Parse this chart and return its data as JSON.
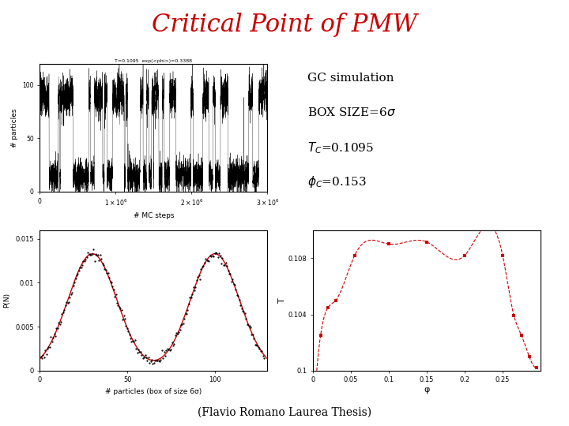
{
  "title": "Critical Point of PMW",
  "title_color": "#cc0000",
  "title_fontsize": 22,
  "bg_color": "#ffffff",
  "top_subtitle": "T=0.1095  exp(<phi>)=0.3388",
  "timeseries_xlabel": "# MC steps",
  "timeseries_ylabel": "# particles",
  "timeseries_xlim": [
    0,
    3000000
  ],
  "timeseries_ylim": [
    0,
    120
  ],
  "timeseries_yticks": [
    0,
    50,
    100
  ],
  "pn_xlabel": "# particles (box of size 6σ)",
  "pn_ylabel": "P(N)",
  "pn_xlim": [
    0,
    130
  ],
  "pn_ylim": [
    0,
    0.016
  ],
  "pn_yticks": [
    0,
    0.005,
    0.01,
    0.015
  ],
  "pn_xticks": [
    0,
    50,
    100
  ],
  "pn_peak1": 30,
  "pn_peak2": 100,
  "pn_sigma": 14,
  "pn_amp": 0.0133,
  "phase_phi": [
    0.005,
    0.01,
    0.02,
    0.03,
    0.055,
    0.1,
    0.15,
    0.2,
    0.25,
    0.265,
    0.275,
    0.285,
    0.295
  ],
  "phase_T": [
    0.1,
    0.1025,
    0.1045,
    0.105,
    0.1082,
    0.109,
    0.10915,
    0.1082,
    0.1082,
    0.1039,
    0.1025,
    0.101,
    0.1002
  ],
  "phase_xlabel": "φ",
  "phase_ylabel": "T",
  "phase_xlim": [
    0,
    0.3
  ],
  "phase_ylim": [
    0.1,
    0.11
  ],
  "phase_yticks": [
    0.1,
    0.104,
    0.108
  ],
  "phase_xticks": [
    0,
    0.05,
    0.1,
    0.15,
    0.2,
    0.25
  ],
  "footer": "(Flavio Romano Laurea Thesis)",
  "red_color": "#cc0000",
  "black_color": "#000000"
}
